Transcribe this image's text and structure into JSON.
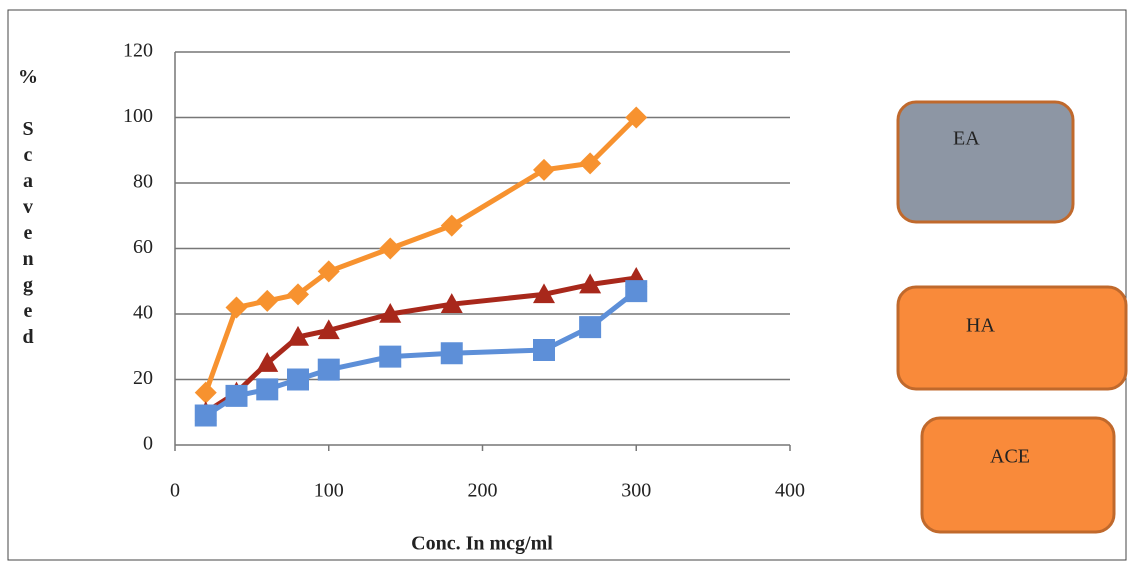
{
  "chart_data": {
    "type": "line",
    "x_label": "Conc. In mcg/ml",
    "y_label": "% Scavenged",
    "x": [
      20,
      40,
      60,
      80,
      100,
      140,
      180,
      240,
      270,
      300
    ],
    "series": [
      {
        "name": "EA",
        "color": "#f7922f",
        "marker": "diamond",
        "values": [
          16,
          42,
          44,
          46,
          53,
          60,
          67,
          84,
          86,
          100
        ]
      },
      {
        "name": "HA",
        "color": "#a8281b",
        "marker": "triangle",
        "values": [
          10,
          16,
          25,
          33,
          35,
          40,
          43,
          46,
          49,
          51
        ]
      },
      {
        "name": "ACE",
        "color": "#5d8fd8",
        "marker": "square",
        "values": [
          9,
          15,
          17,
          20,
          23,
          27,
          28,
          29,
          36,
          47
        ]
      }
    ],
    "xlim": [
      0,
      400
    ],
    "xticks": [
      0,
      100,
      200,
      300,
      400
    ],
    "ylim": [
      0,
      120
    ],
    "yticks": [
      0,
      20,
      40,
      60,
      80,
      100,
      120
    ],
    "grid": true
  }
}
